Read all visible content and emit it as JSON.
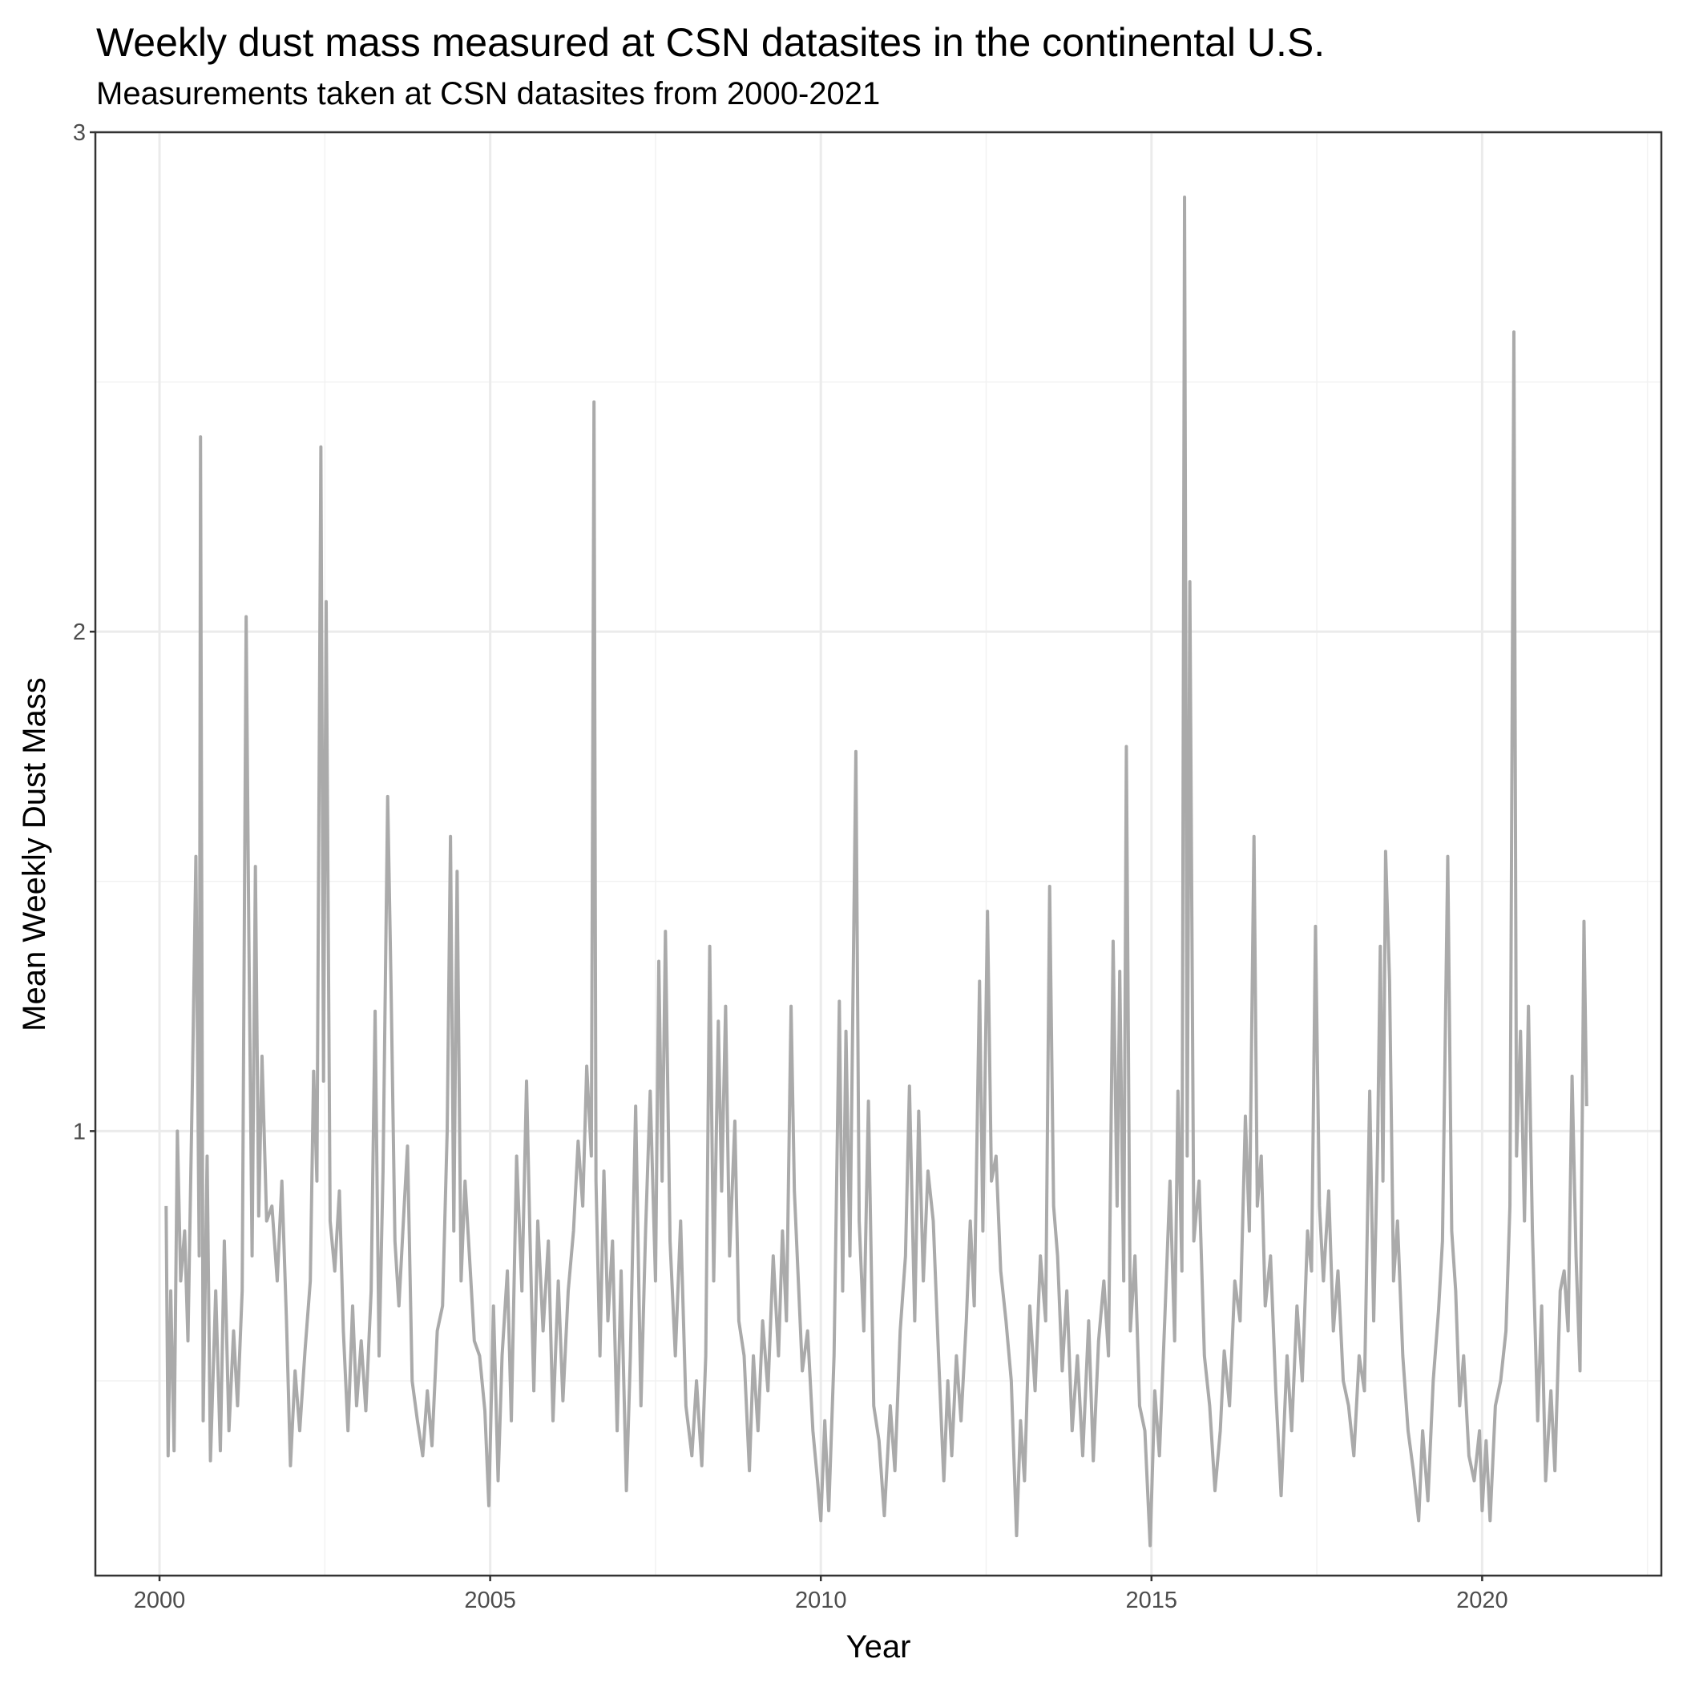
{
  "chart_data": {
    "type": "line",
    "title": "Weekly dust mass measured at CSN datasites in the continental U.S.",
    "subtitle": "Measurements taken at CSN datasites from 2000-2021",
    "x_label": "Year",
    "y_label": "Mean Weekly Dust Mass",
    "color": "#aaaaaa",
    "grid": true,
    "xlim": [
      1999.03,
      2022.71
    ],
    "xticks": [
      2000,
      2005,
      2010,
      2015,
      2020
    ],
    "minor_xticks": [
      2002.5,
      2007.5,
      2012.5,
      2017.5,
      2022.5
    ],
    "ylim": [
      0.11,
      3.0
    ],
    "yticks": [
      1,
      2,
      3
    ],
    "minor_yticks": [
      0.5,
      1.5,
      2.5
    ],
    "x": [
      2000.1,
      2000.13,
      2000.17,
      2000.22,
      2000.27,
      2000.32,
      2000.38,
      2000.43,
      2000.5,
      2000.55,
      2000.6,
      2000.62,
      2000.66,
      2000.72,
      2000.77,
      2000.85,
      2000.92,
      2000.98,
      2001.05,
      2001.12,
      2001.18,
      2001.25,
      2001.31,
      2001.35,
      2001.4,
      2001.45,
      2001.5,
      2001.55,
      2001.62,
      2001.7,
      2001.78,
      2001.85,
      2001.92,
      2001.98,
      2002.05,
      2002.12,
      2002.2,
      2002.28,
      2002.33,
      2002.38,
      2002.44,
      2002.48,
      2002.52,
      2002.58,
      2002.65,
      2002.72,
      2002.78,
      2002.85,
      2002.92,
      2002.98,
      2003.05,
      2003.12,
      2003.2,
      2003.26,
      2003.32,
      2003.38,
      2003.45,
      2003.5,
      2003.56,
      2003.62,
      2003.7,
      2003.75,
      2003.82,
      2003.9,
      2003.98,
      2004.05,
      2004.12,
      2004.2,
      2004.28,
      2004.35,
      2004.4,
      2004.45,
      2004.5,
      2004.56,
      2004.62,
      2004.7,
      2004.76,
      2004.84,
      2004.92,
      2004.98,
      2005.05,
      2005.12,
      2005.18,
      2005.26,
      2005.32,
      2005.4,
      2005.48,
      2005.55,
      2005.6,
      2005.66,
      2005.72,
      2005.8,
      2005.88,
      2005.95,
      2006.03,
      2006.1,
      2006.18,
      2006.26,
      2006.33,
      2006.4,
      2006.46,
      2006.53,
      2006.57,
      2006.6,
      2006.66,
      2006.72,
      2006.78,
      2006.85,
      2006.92,
      2006.98,
      2007.06,
      2007.12,
      2007.2,
      2007.28,
      2007.35,
      2007.42,
      2007.5,
      2007.55,
      2007.6,
      2007.65,
      2007.72,
      2007.8,
      2007.88,
      2007.96,
      2008.05,
      2008.12,
      2008.2,
      2008.26,
      2008.32,
      2008.38,
      2008.45,
      2008.5,
      2008.56,
      2008.62,
      2008.7,
      2008.76,
      2008.84,
      2008.92,
      2008.98,
      2009.05,
      2009.12,
      2009.2,
      2009.28,
      2009.36,
      2009.42,
      2009.48,
      2009.55,
      2009.6,
      2009.66,
      2009.72,
      2009.8,
      2009.88,
      2009.95,
      2010.0,
      2010.06,
      2010.12,
      2010.2,
      2010.28,
      2010.33,
      2010.38,
      2010.44,
      2010.53,
      2010.58,
      2010.65,
      2010.72,
      2010.8,
      2010.88,
      2010.96,
      2011.05,
      2011.12,
      2011.2,
      2011.28,
      2011.34,
      2011.42,
      2011.48,
      2011.55,
      2011.62,
      2011.7,
      2011.78,
      2011.86,
      2011.92,
      2011.98,
      2012.05,
      2012.12,
      2012.2,
      2012.26,
      2012.32,
      2012.4,
      2012.45,
      2012.52,
      2012.58,
      2012.65,
      2012.72,
      2012.8,
      2012.88,
      2012.96,
      2013.02,
      2013.08,
      2013.16,
      2013.24,
      2013.32,
      2013.4,
      2013.46,
      2013.52,
      2013.58,
      2013.65,
      2013.72,
      2013.8,
      2013.88,
      2013.96,
      2014.05,
      2014.12,
      2014.2,
      2014.28,
      2014.35,
      2014.42,
      2014.48,
      2014.52,
      2014.58,
      2014.62,
      2014.68,
      2014.75,
      2014.82,
      2014.9,
      2014.98,
      2015.05,
      2015.12,
      2015.2,
      2015.28,
      2015.35,
      2015.4,
      2015.46,
      2015.5,
      2015.54,
      2015.58,
      2015.64,
      2015.72,
      2015.8,
      2015.88,
      2015.96,
      2016.04,
      2016.1,
      2016.18,
      2016.26,
      2016.34,
      2016.42,
      2016.48,
      2016.55,
      2016.6,
      2016.66,
      2016.72,
      2016.8,
      2016.88,
      2016.96,
      2017.05,
      2017.12,
      2017.2,
      2017.28,
      2017.36,
      2017.42,
      2017.48,
      2017.54,
      2017.6,
      2017.68,
      2017.75,
      2017.82,
      2017.9,
      2017.98,
      2018.06,
      2018.14,
      2018.22,
      2018.3,
      2018.36,
      2018.42,
      2018.46,
      2018.5,
      2018.54,
      2018.6,
      2018.66,
      2018.72,
      2018.8,
      2018.88,
      2018.96,
      2019.04,
      2019.1,
      2019.18,
      2019.26,
      2019.34,
      2019.4,
      2019.48,
      2019.54,
      2019.6,
      2019.66,
      2019.72,
      2019.8,
      2019.88,
      2019.96,
      2020.0,
      2020.06,
      2020.12,
      2020.2,
      2020.28,
      2020.36,
      2020.42,
      2020.48,
      2020.52,
      2020.58,
      2020.64,
      2020.7,
      2020.76,
      2020.84,
      2020.9,
      2020.96,
      2021.04,
      2021.1,
      2021.18,
      2021.24,
      2021.3,
      2021.36,
      2021.42,
      2021.48,
      2021.54,
      2021.58
    ],
    "values": [
      0.85,
      0.35,
      0.68,
      0.36,
      1.0,
      0.7,
      0.8,
      0.58,
      1.12,
      1.55,
      0.75,
      2.39,
      0.42,
      0.95,
      0.34,
      0.68,
      0.36,
      0.78,
      0.4,
      0.6,
      0.45,
      0.68,
      2.03,
      1.4,
      0.75,
      1.53,
      0.83,
      1.15,
      0.82,
      0.85,
      0.7,
      0.9,
      0.62,
      0.33,
      0.52,
      0.4,
      0.56,
      0.7,
      1.12,
      0.9,
      2.37,
      1.1,
      2.06,
      0.82,
      0.72,
      0.88,
      0.6,
      0.4,
      0.65,
      0.45,
      0.58,
      0.44,
      0.68,
      1.24,
      0.55,
      0.92,
      1.67,
      1.3,
      0.78,
      0.65,
      0.85,
      0.97,
      0.5,
      0.42,
      0.35,
      0.48,
      0.37,
      0.6,
      0.65,
      1.0,
      1.59,
      0.8,
      1.52,
      0.7,
      0.9,
      0.72,
      0.58,
      0.55,
      0.44,
      0.25,
      0.65,
      0.3,
      0.55,
      0.72,
      0.42,
      0.95,
      0.68,
      1.1,
      0.8,
      0.48,
      0.82,
      0.6,
      0.78,
      0.42,
      0.7,
      0.46,
      0.68,
      0.8,
      0.98,
      0.85,
      1.13,
      0.95,
      2.46,
      0.9,
      0.55,
      0.92,
      0.62,
      0.78,
      0.4,
      0.72,
      0.28,
      0.55,
      1.05,
      0.45,
      0.8,
      1.08,
      0.7,
      1.34,
      0.9,
      1.4,
      0.78,
      0.55,
      0.82,
      0.45,
      0.35,
      0.5,
      0.33,
      0.55,
      1.37,
      0.7,
      1.22,
      0.88,
      1.25,
      0.75,
      1.02,
      0.62,
      0.55,
      0.32,
      0.55,
      0.4,
      0.62,
      0.48,
      0.75,
      0.55,
      0.8,
      0.62,
      1.25,
      0.88,
      0.7,
      0.52,
      0.6,
      0.4,
      0.3,
      0.22,
      0.42,
      0.24,
      0.55,
      1.26,
      0.68,
      1.2,
      0.75,
      1.76,
      0.82,
      0.6,
      1.06,
      0.45,
      0.38,
      0.23,
      0.45,
      0.32,
      0.6,
      0.75,
      1.09,
      0.62,
      1.04,
      0.7,
      0.92,
      0.82,
      0.55,
      0.3,
      0.5,
      0.35,
      0.55,
      0.42,
      0.62,
      0.82,
      0.65,
      1.3,
      0.8,
      1.44,
      0.9,
      0.95,
      0.72,
      0.62,
      0.5,
      0.19,
      0.42,
      0.3,
      0.65,
      0.48,
      0.75,
      0.62,
      1.49,
      0.85,
      0.75,
      0.52,
      0.68,
      0.4,
      0.55,
      0.35,
      0.62,
      0.34,
      0.58,
      0.7,
      0.55,
      1.38,
      0.85,
      1.32,
      0.7,
      1.77,
      0.6,
      0.75,
      0.45,
      0.4,
      0.17,
      0.48,
      0.35,
      0.62,
      0.9,
      0.58,
      1.08,
      0.72,
      2.87,
      0.95,
      2.1,
      0.78,
      0.9,
      0.55,
      0.45,
      0.28,
      0.4,
      0.56,
      0.45,
      0.7,
      0.62,
      1.03,
      0.8,
      1.59,
      0.85,
      0.95,
      0.65,
      0.75,
      0.48,
      0.27,
      0.55,
      0.4,
      0.65,
      0.5,
      0.8,
      0.72,
      1.41,
      0.85,
      0.7,
      0.88,
      0.6,
      0.72,
      0.5,
      0.45,
      0.35,
      0.55,
      0.48,
      1.08,
      0.62,
      0.98,
      1.37,
      0.9,
      1.56,
      1.3,
      0.7,
      0.82,
      0.55,
      0.4,
      0.32,
      0.22,
      0.4,
      0.26,
      0.5,
      0.64,
      0.78,
      1.55,
      0.8,
      0.68,
      0.45,
      0.55,
      0.35,
      0.3,
      0.4,
      0.24,
      0.38,
      0.22,
      0.45,
      0.5,
      0.6,
      0.85,
      2.6,
      0.95,
      1.2,
      0.82,
      1.25,
      0.8,
      0.42,
      0.65,
      0.3,
      0.48,
      0.32,
      0.68,
      0.72,
      0.6,
      1.11,
      0.75,
      0.52,
      1.42,
      1.05
    ]
  }
}
